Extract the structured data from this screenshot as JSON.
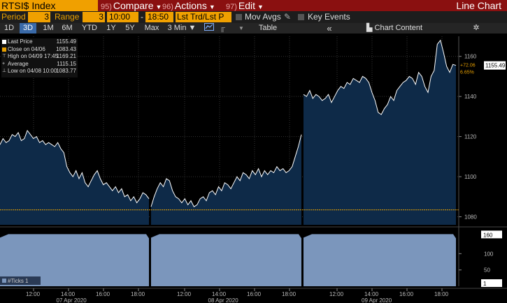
{
  "header": {
    "ticker": "RTSI$ Index",
    "menus": [
      {
        "num": "95)",
        "label": "Compare"
      },
      {
        "num": "96)",
        "label": "Actions"
      },
      {
        "num": "97)",
        "label": "Edit"
      }
    ],
    "title": "Line Chart"
  },
  "controls": {
    "period_label": "Period",
    "period_value": "3",
    "range_label": "Range",
    "range_value": "3",
    "time_from": "10:00",
    "time_to": "18:50",
    "price_field": "Lst Trd/Lst P",
    "mov_avgs": "Mov Avgs",
    "key_events": "Key Events"
  },
  "toolbar": {
    "ranges": [
      "1D",
      "3D",
      "1M",
      "6M",
      "YTD",
      "1Y",
      "5Y",
      "Max"
    ],
    "selected": "3D",
    "interval": "3 Min",
    "table": "Table",
    "chart_content": "Chart Content",
    "collapse": "«"
  },
  "legend": {
    "rows": [
      {
        "key": "Last Price",
        "value": "1155.49"
      },
      {
        "key": "Close on 04/06",
        "value": "1083.43"
      },
      {
        "key": "High on 04/09 17:45",
        "value": "1169.21"
      },
      {
        "key": "Average",
        "value": "1115.15"
      },
      {
        "key": "Low on 04/08 10:00",
        "value": "1083.77"
      }
    ]
  },
  "colors": {
    "accent": "#f0a000",
    "header_bg": "#8a1010",
    "area_fill": "#0e2a48",
    "line": "#ffffff",
    "close_line": "#e8a000",
    "volume_fill": "#7b96bc"
  },
  "chart_data": {
    "type": "area",
    "ylim": [
      1076,
      1170
    ],
    "yticks": [
      1080,
      1100,
      1120,
      1140,
      1160
    ],
    "last_label": "1155.49",
    "change_label": "+72.06",
    "change_pct_label": "6.65%",
    "close_value": 1083.43,
    "days": [
      {
        "date_label": "07 Apr 2020",
        "time_labels": [
          "12:00",
          "14:00",
          "16:00",
          "18:00"
        ],
        "values": [
          1116,
          1119,
          1117,
          1118,
          1121,
          1120,
          1122,
          1118,
          1119,
          1123,
          1121,
          1119,
          1120,
          1117,
          1118,
          1116,
          1117,
          1116,
          1115,
          1117,
          1114,
          1112,
          1105,
          1102,
          1100,
          1103,
          1099,
          1102,
          1097,
          1095,
          1098,
          1101,
          1103,
          1099,
          1096,
          1097,
          1095,
          1093,
          1095,
          1092,
          1094,
          1090,
          1091,
          1088,
          1090,
          1087,
          1089,
          1092,
          1091,
          1089
        ]
      },
      {
        "date_label": "08 Apr 2020",
        "time_labels": [
          "12:00",
          "14:00",
          "16:00",
          "18:00"
        ],
        "values": [
          1085,
          1090,
          1094,
          1097,
          1095,
          1099,
          1098,
          1093,
          1090,
          1089,
          1087,
          1089,
          1086,
          1088,
          1085,
          1086,
          1089,
          1090,
          1088,
          1092,
          1093,
          1091,
          1095,
          1093,
          1097,
          1096,
          1094,
          1097,
          1100,
          1098,
          1102,
          1101,
          1099,
          1103,
          1101,
          1104,
          1100,
          1103,
          1101,
          1103,
          1102,
          1105,
          1103,
          1104,
          1102,
          1103,
          1105,
          1110,
          1115,
          1121
        ]
      },
      {
        "date_label": "09 Apr 2020",
        "time_labels": [
          "12:00",
          "14:00",
          "16:00",
          "18:00"
        ],
        "values": [
          1141,
          1140,
          1143,
          1139,
          1141,
          1140,
          1138,
          1139,
          1141,
          1137,
          1140,
          1143,
          1145,
          1144,
          1147,
          1146,
          1149,
          1148,
          1147,
          1150,
          1149,
          1147,
          1142,
          1138,
          1132,
          1131,
          1134,
          1136,
          1140,
          1138,
          1143,
          1145,
          1147,
          1148,
          1150,
          1149,
          1146,
          1152,
          1150,
          1145,
          1142,
          1150,
          1153,
          1166,
          1168,
          1162,
          1155,
          1152,
          1156,
          1155.49
        ]
      }
    ],
    "volume": {
      "legend": "#Ticks 1",
      "ylim": [
        0,
        165
      ],
      "yticks": [
        50,
        100
      ],
      "top_label": "160",
      "bottom_label": "1",
      "level": 160
    }
  }
}
